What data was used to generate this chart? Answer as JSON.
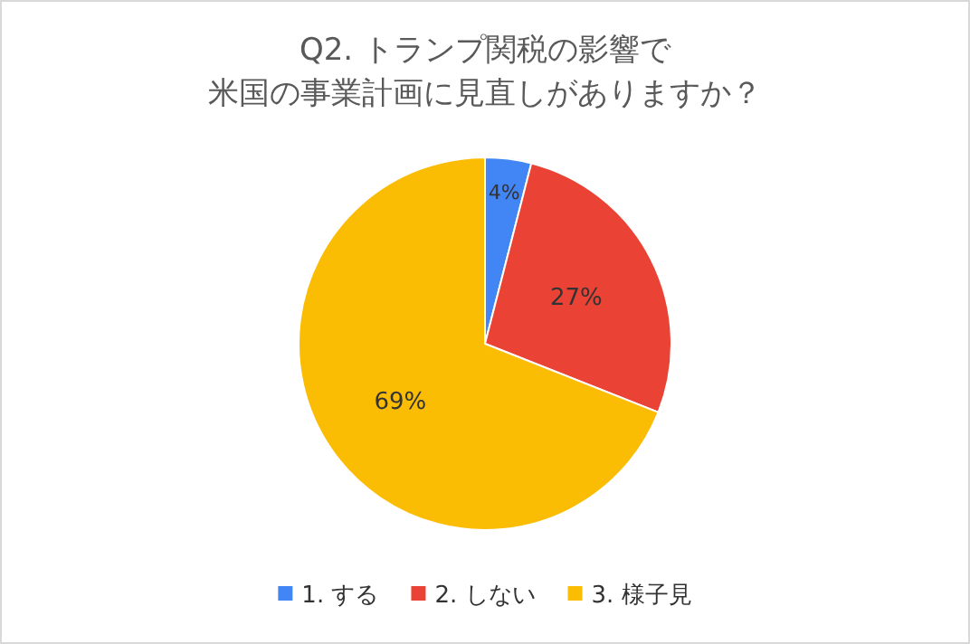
{
  "chart_data": {
    "type": "pie",
    "title": "Q2. トランプ関税の影響で",
    "subtitle": "米国の事業計画に見直しがありますか？",
    "categories": [
      "1. する",
      "2. しない",
      "3. 様子見"
    ],
    "values": [
      4,
      27,
      69
    ],
    "value_labels": [
      "4%",
      "27%",
      "69%"
    ],
    "colors": [
      "#4285f4",
      "#ea4335",
      "#fbbc04"
    ],
    "legend": "bottom"
  }
}
